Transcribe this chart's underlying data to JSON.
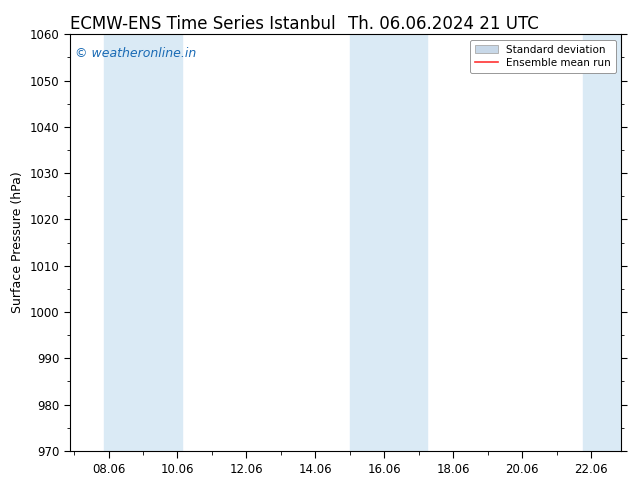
{
  "title": "ECMW-ENS Time Series Istanbul",
  "title2": "Th. 06.06.2024 21 UTC",
  "ylabel": "Surface Pressure (hPa)",
  "ylim": [
    970,
    1060
  ],
  "yticks": [
    970,
    980,
    990,
    1000,
    1010,
    1020,
    1030,
    1040,
    1050,
    1060
  ],
  "xtick_labels": [
    "08.06",
    "10.06",
    "12.06",
    "14.06",
    "16.06",
    "18.06",
    "20.06",
    "22.06"
  ],
  "xlim_start": 6.875,
  "xlim_end": 22.875,
  "xtick_positions": [
    8,
    10,
    12,
    14,
    16,
    18,
    20,
    22
  ],
  "watermark": "© weatheronline.in",
  "watermark_color": "#1a6bb5",
  "background_color": "#ffffff",
  "shaded_bands": [
    {
      "x_start": 7.875,
      "x_end": 10.125
    },
    {
      "x_start": 15.0,
      "x_end": 17.25
    },
    {
      "x_start": 21.75,
      "x_end": 22.875
    }
  ],
  "band_color": "#daeaf5",
  "std_dev_color": "#c8d8e8",
  "ensemble_mean_color": "#ff3333",
  "legend_std_label": "Standard deviation",
  "legend_mean_label": "Ensemble mean run",
  "title_fontsize": 12,
  "axis_fontsize": 9,
  "tick_fontsize": 8.5,
  "watermark_fontsize": 9
}
